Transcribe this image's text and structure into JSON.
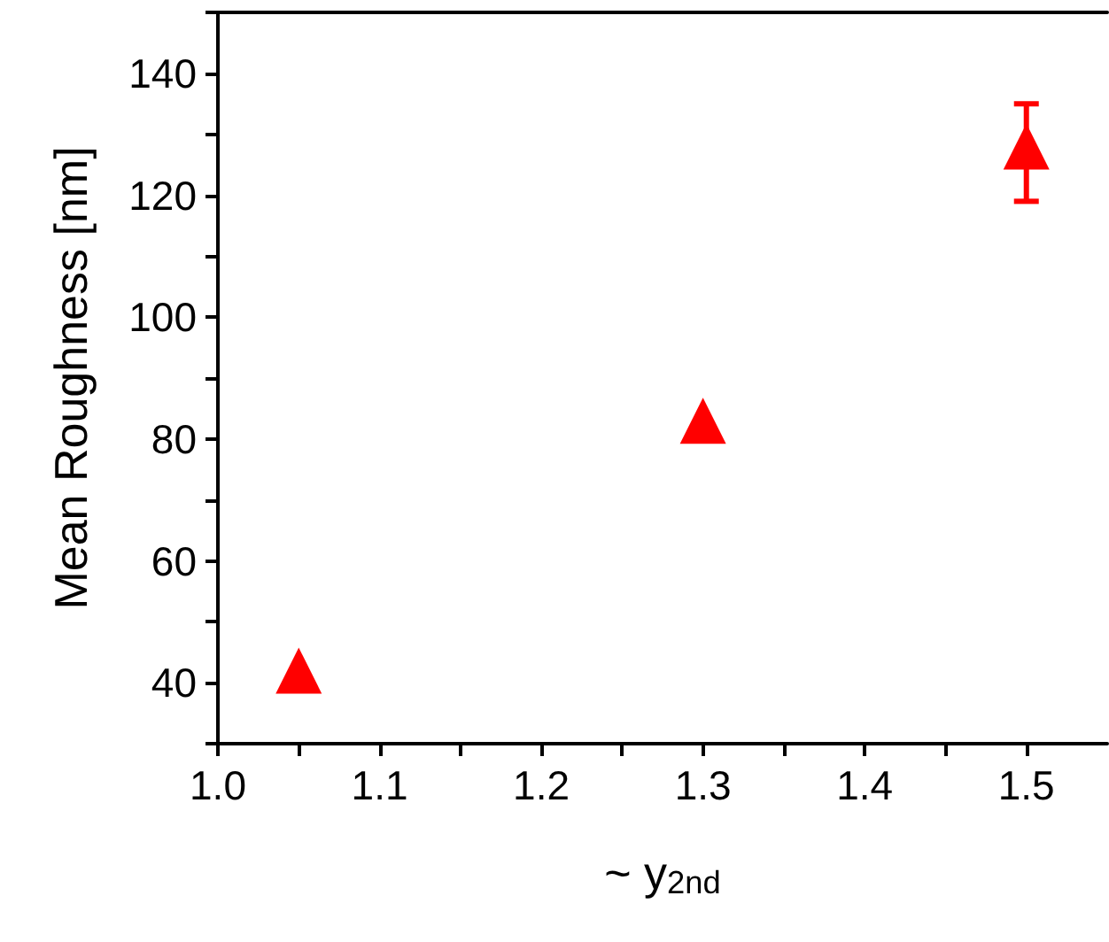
{
  "chart_data": {
    "type": "scatter",
    "xlabel": "~ y$_{2nd}$",
    "ylabel": "Mean Roughness [nm]",
    "x": [
      1.05,
      1.3,
      1.5
    ],
    "series": [
      {
        "color": "#ff0000",
        "values": [
          42,
          83,
          128
        ],
        "errors": [
          null,
          null,
          [
            119,
            135
          ]
        ]
      }
    ],
    "marker": "triangle",
    "grid": false,
    "xlim": [
      1.0,
      1.55
    ],
    "xticks": [
      {
        "value": 1.0,
        "label": "1.0"
      },
      {
        "value": 1.05,
        "label": null
      },
      1.1,
      {
        "value": 1.15,
        "label": null
      },
      1.2,
      {
        "value": 1.25,
        "label": null
      },
      1.3,
      {
        "value": 1.35,
        "label": null
      },
      1.4,
      {
        "value": 1.45,
        "label": null
      },
      1.5
    ],
    "ylim": [
      30,
      150
    ],
    "yticks": [
      {
        "value": 30,
        "label": null
      },
      40,
      {
        "value": 50,
        "label": null
      },
      60,
      {
        "value": 70,
        "label": null
      },
      80,
      {
        "value": 90,
        "label": null
      },
      100,
      {
        "value": 110,
        "label": null
      },
      120,
      {
        "value": 130,
        "label": null
      },
      140,
      {
        "value": 150,
        "label": null
      }
    ]
  }
}
